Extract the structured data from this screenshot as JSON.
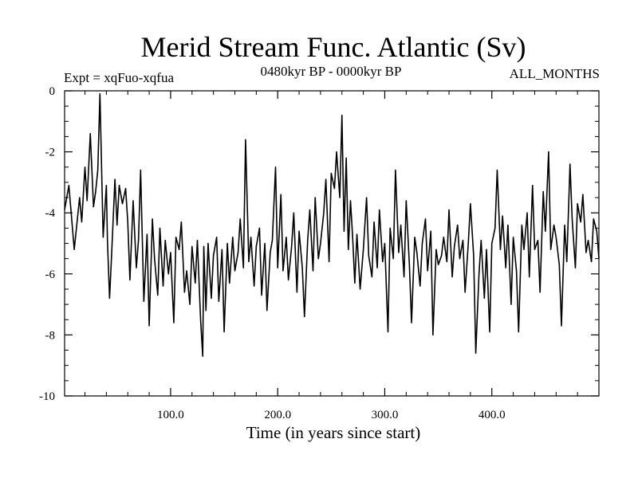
{
  "chart_data": {
    "type": "line",
    "title": "Merid Stream Func. Atlantic (Sv)",
    "experiment_label": "Expt = xqFuo-xqfua",
    "period_label": "0480kyr BP - 0000kyr BP",
    "months_label": "ALL_MONTHS",
    "xlabel": "Time (in years since start)",
    "ylabel": "",
    "xlim": [
      1,
      500
    ],
    "ylim": [
      -10,
      0
    ],
    "xticks": [
      100,
      200,
      300,
      400
    ],
    "xtick_labels": [
      "100.0",
      "200.0",
      "300.0",
      "400.0"
    ],
    "yticks": [
      0,
      -2,
      -4,
      -6,
      -8,
      -10
    ],
    "ytick_labels": [
      "0",
      "-2",
      "-4",
      "-6",
      "-8",
      "-10"
    ],
    "grid": false,
    "series": [
      {
        "name": "Expt = xqFuo-xqfua",
        "color": "#000000",
        "x": [
          1,
          5,
          10,
          15,
          17,
          20,
          22,
          25,
          28,
          30,
          32,
          34,
          37,
          40,
          41,
          43,
          45,
          48,
          50,
          52,
          55,
          58,
          60,
          62,
          65,
          68,
          70,
          72,
          75,
          78,
          80,
          83,
          85,
          88,
          90,
          93,
          95,
          98,
          100,
          103,
          105,
          108,
          110,
          113,
          115,
          118,
          120,
          123,
          125,
          128,
          130,
          131,
          133,
          135,
          138,
          140,
          143,
          145,
          148,
          150,
          153,
          155,
          158,
          160,
          163,
          165,
          168,
          170,
          173,
          175,
          178,
          180,
          183,
          185,
          188,
          190,
          193,
          195,
          198,
          200,
          203,
          205,
          208,
          210,
          213,
          215,
          218,
          220,
          223,
          225,
          228,
          230,
          233,
          235,
          238,
          240,
          243,
          245,
          248,
          250,
          253,
          255,
          258,
          260,
          262,
          264,
          266,
          268,
          270,
          272,
          274,
          277,
          280,
          283,
          285,
          288,
          290,
          293,
          295,
          298,
          300,
          303,
          305,
          308,
          310,
          313,
          315,
          318,
          320,
          323,
          325,
          328,
          330,
          333,
          335,
          338,
          340,
          343,
          345,
          348,
          350,
          353,
          355,
          358,
          360,
          363,
          365,
          368,
          370,
          373,
          375,
          378,
          380,
          383,
          385,
          388,
          390,
          393,
          395,
          398,
          400,
          403,
          405,
          408,
          410,
          413,
          415,
          418,
          420,
          423,
          425,
          428,
          430,
          433,
          435,
          438,
          440,
          443,
          445,
          448,
          450,
          453,
          455,
          458,
          460,
          463,
          465,
          468,
          470,
          473,
          475,
          478,
          480,
          483,
          485,
          488,
          490,
          493,
          495,
          498,
          500
        ],
        "values": [
          -3.9,
          -3.1,
          -5.2,
          -3.5,
          -4.3,
          -2.5,
          -3.6,
          -1.4,
          -3.8,
          -3.3,
          -2.6,
          -0.1,
          -4.8,
          -3.1,
          -4.9,
          -6.8,
          -5.3,
          -2.9,
          -4.4,
          -3.1,
          -3.7,
          -3.2,
          -4.3,
          -6.2,
          -3.6,
          -5.8,
          -4.9,
          -2.6,
          -6.9,
          -4.7,
          -7.7,
          -4.2,
          -5.5,
          -6.7,
          -4.5,
          -6.4,
          -4.9,
          -6.0,
          -5.3,
          -7.6,
          -4.8,
          -5.2,
          -4.3,
          -6.6,
          -5.9,
          -7.0,
          -5.1,
          -6.3,
          -4.9,
          -7.5,
          -8.7,
          -5.1,
          -7.2,
          -5.0,
          -6.8,
          -5.4,
          -4.8,
          -6.9,
          -5.2,
          -7.9,
          -5.0,
          -6.3,
          -4.8,
          -5.9,
          -5.3,
          -4.2,
          -5.8,
          -1.6,
          -5.6,
          -4.8,
          -6.4,
          -5.1,
          -4.5,
          -6.7,
          -5.0,
          -7.2,
          -5.3,
          -4.9,
          -2.5,
          -5.8,
          -3.4,
          -5.9,
          -4.8,
          -6.2,
          -5.1,
          -4.0,
          -6.6,
          -4.6,
          -5.8,
          -7.4,
          -4.9,
          -3.9,
          -5.9,
          -3.5,
          -5.5,
          -5.0,
          -4.0,
          -2.9,
          -5.6,
          -2.7,
          -3.2,
          -2.0,
          -3.5,
          -0.8,
          -4.6,
          -2.2,
          -5.2,
          -3.6,
          -4.8,
          -6.3,
          -4.7,
          -6.5,
          -5.2,
          -3.5,
          -5.4,
          -6.1,
          -4.3,
          -5.8,
          -3.9,
          -5.6,
          -5.0,
          -7.9,
          -4.5,
          -5.5,
          -2.6,
          -5.3,
          -4.4,
          -6.1,
          -3.6,
          -5.7,
          -7.6,
          -4.8,
          -5.3,
          -6.4,
          -5.0,
          -4.2,
          -5.9,
          -4.6,
          -8.0,
          -5.2,
          -5.7,
          -5.4,
          -4.8,
          -5.6,
          -3.9,
          -6.1,
          -5.1,
          -4.4,
          -5.5,
          -4.9,
          -6.6,
          -5.0,
          -3.7,
          -5.4,
          -8.6,
          -6.0,
          -4.9,
          -6.8,
          -5.2,
          -7.9,
          -5.0,
          -4.5,
          -2.6,
          -5.2,
          -4.1,
          -5.8,
          -4.4,
          -7.0,
          -4.8,
          -5.9,
          -7.9,
          -4.4,
          -5.2,
          -4.0,
          -6.1,
          -3.1,
          -5.2,
          -4.9,
          -6.6,
          -3.3,
          -4.6,
          -2.0,
          -5.2,
          -4.4,
          -4.8,
          -5.7,
          -7.7,
          -4.4,
          -5.6,
          -2.4,
          -4.2,
          -5.8,
          -3.7,
          -4.3,
          -3.4,
          -5.3,
          -4.9,
          -5.6,
          -4.2,
          -4.6,
          -5.5
        ]
      }
    ]
  }
}
